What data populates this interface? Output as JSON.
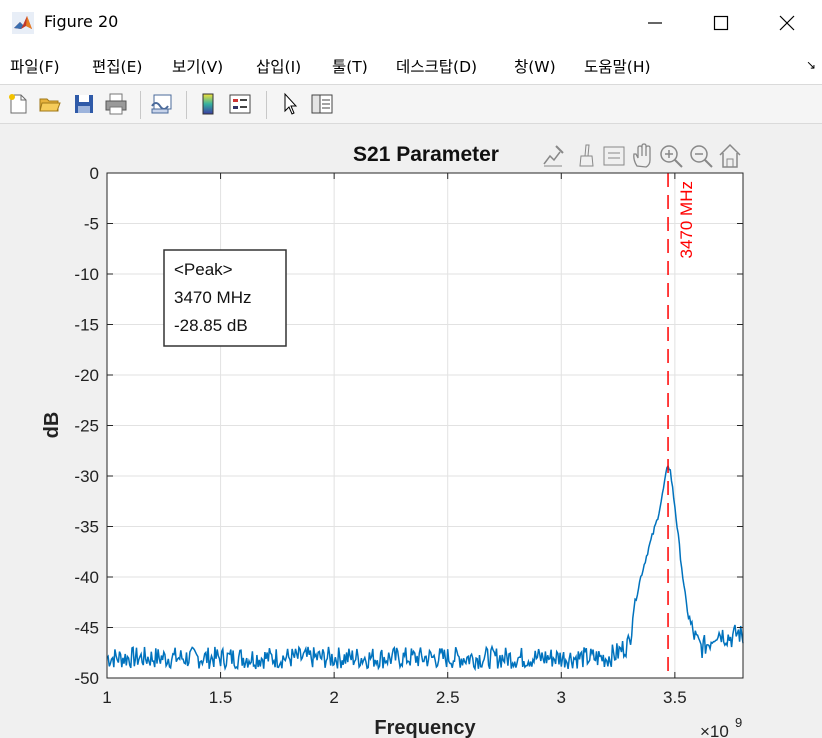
{
  "window": {
    "title": "Figure 20",
    "controls": [
      "minimize",
      "maximize",
      "close"
    ]
  },
  "menu": {
    "items": [
      "파일(F)",
      "편집(E)",
      "보기(V)",
      "삽입(I)",
      "툴(T)",
      "데스크탑(D)",
      "창(W)",
      "도움말(H)"
    ]
  },
  "toolbar": {
    "icons": [
      "new-figure-icon",
      "open-file-icon",
      "save-icon",
      "print-icon",
      "link-plot-icon",
      "insert-colorbar-icon",
      "insert-legend-icon",
      "edit-plot-icon",
      "property-inspector-icon"
    ]
  },
  "axes_toolbar": {
    "icons": [
      "export-icon",
      "brush-icon",
      "data-tips-icon",
      "pan-icon",
      "zoom-in-icon",
      "zoom-out-icon",
      "home-icon"
    ]
  },
  "chart_data": {
    "type": "line",
    "title": "S21 Parameter",
    "xlabel": "Frequency",
    "ylabel": "dB",
    "x_exponent": "×10",
    "x_exponent_power": "9",
    "xlim": [
      1,
      3.8
    ],
    "ylim": [
      -50,
      0
    ],
    "xticks": [
      "1",
      "1.5",
      "2",
      "2.5",
      "3",
      "3.5"
    ],
    "xtick_values": [
      1,
      1.5,
      2,
      2.5,
      3,
      3.5
    ],
    "yticks": [
      "0",
      "-5",
      "-10",
      "-15",
      "-20",
      "-25",
      "-30",
      "-35",
      "-40",
      "-45",
      "-50"
    ],
    "ytick_values": [
      0,
      -5,
      -10,
      -15,
      -20,
      -25,
      -30,
      -35,
      -40,
      -45,
      -50
    ],
    "grid": true,
    "line_color": "#0072bd",
    "series": [
      {
        "x": [
          1.0,
          1.1,
          1.2,
          1.3,
          1.4,
          1.5,
          1.6,
          1.7,
          1.8,
          1.9,
          2.0,
          2.1,
          2.2,
          2.3,
          2.4,
          2.5,
          2.6,
          2.7,
          2.8,
          2.9,
          3.0,
          3.1,
          3.2,
          3.25,
          3.3,
          3.32,
          3.35,
          3.38,
          3.4,
          3.42,
          3.44,
          3.46,
          3.47,
          3.48,
          3.5,
          3.52,
          3.54,
          3.56,
          3.58,
          3.6,
          3.62,
          3.65,
          3.68,
          3.7,
          3.72,
          3.75,
          3.78,
          3.8
        ],
        "y": [
          -48,
          -48,
          -48,
          -48,
          -48,
          -48,
          -48,
          -48,
          -48,
          -48,
          -48,
          -48,
          -48,
          -48,
          -48,
          -48,
          -48,
          -48,
          -48,
          -48,
          -48,
          -48,
          -48,
          -47.5,
          -46.5,
          -43,
          -40,
          -37.5,
          -36,
          -34.5,
          -32.5,
          -30,
          -28.85,
          -29.5,
          -33,
          -37,
          -41,
          -44,
          -45.5,
          -46.5,
          -47,
          -46.5,
          -45.5,
          -45.5,
          -45.8,
          -46,
          -45.5,
          -46
        ]
      }
    ],
    "marker_line": {
      "x": 3.47,
      "label": "3470 MHz",
      "color": "#ff0000"
    },
    "annotation": {
      "lines": [
        "<Peak>",
        "3470 MHz",
        "-28.85 dB"
      ]
    }
  }
}
